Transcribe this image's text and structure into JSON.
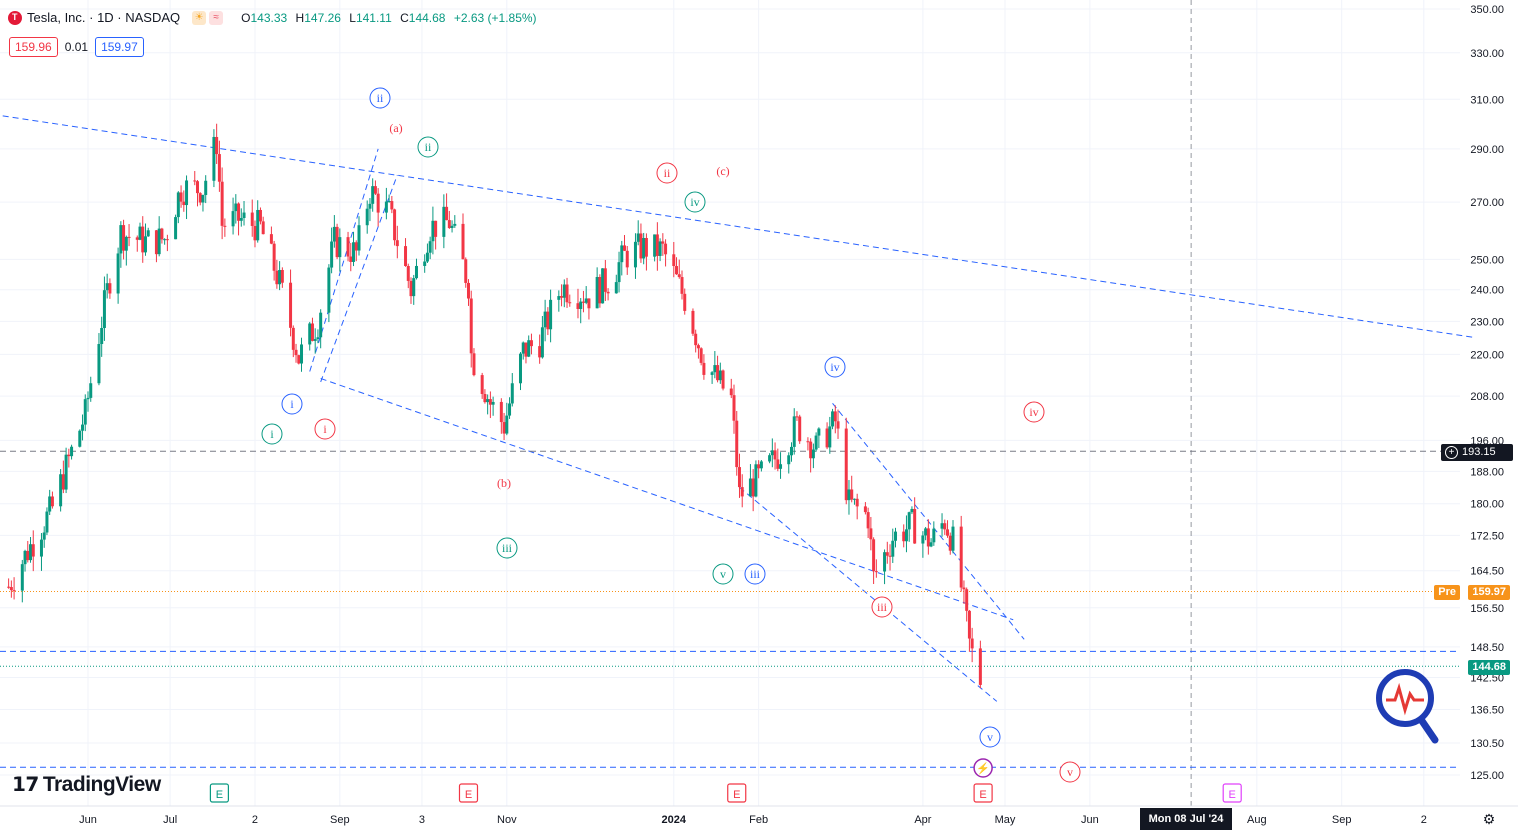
{
  "header": {
    "symbol": "Tesla, Inc. · 1D · NASDAQ",
    "open_label": "O",
    "open": "143.33",
    "high_label": "H",
    "high": "147.26",
    "low_label": "L",
    "low": "141.11",
    "close_label": "C",
    "close": "144.68",
    "change": "+2.63 (+1.85%)"
  },
  "bid_ask": {
    "bid": "159.96",
    "spread": "0.01",
    "ask": "159.97"
  },
  "price_labels": {
    "crosshair": "193.15",
    "pre_tag": "Pre",
    "pre": "159.97",
    "last": "144.68"
  },
  "crosshair_date": "Mon 08 Jul '24",
  "brand": {
    "name": "TradingView"
  },
  "colors": {
    "up": "#089981",
    "down": "#f23645",
    "blue": "#2962ff",
    "pre": "#f7931a",
    "crosshair": "#131722"
  },
  "chart_data": {
    "type": "candlestick",
    "title": "Tesla, Inc. · 1D · NASDAQ",
    "y_scale": "log",
    "y_ticks": [
      350,
      330,
      310,
      290,
      270,
      250,
      240,
      230,
      220,
      208,
      196,
      188,
      180,
      172.5,
      164.5,
      156.5,
      148.5,
      142.5,
      136.5,
      130.5,
      125
    ],
    "x_ticks": [
      {
        "label": "Jun",
        "date": "2023-06-01"
      },
      {
        "label": "Jul",
        "date": "2023-07-01"
      },
      {
        "label": "2",
        "date": "2023-08-01"
      },
      {
        "label": "Sep",
        "date": "2023-09-01"
      },
      {
        "label": "3",
        "date": "2023-10-01"
      },
      {
        "label": "Nov",
        "date": "2023-11-01"
      },
      {
        "label": "2024",
        "date": "2024-01-01"
      },
      {
        "label": "Feb",
        "date": "2024-02-01"
      },
      {
        "label": "Apr",
        "date": "2024-04-01"
      },
      {
        "label": "May",
        "date": "2024-05-01"
      },
      {
        "label": "Jun",
        "date": "2024-06-01"
      },
      {
        "label": "Aug",
        "date": "2024-08-01"
      },
      {
        "label": "Sep",
        "date": "2024-09-01"
      },
      {
        "label": "2",
        "date": "2024-10-01"
      }
    ],
    "approx_close_path": [
      [
        "2023-05-03",
        161
      ],
      [
        "2023-05-19",
        179
      ],
      [
        "2023-05-31",
        203
      ],
      [
        "2023-06-09",
        244
      ],
      [
        "2023-06-13",
        259
      ],
      [
        "2023-06-22",
        256
      ],
      [
        "2023-06-29",
        257
      ],
      [
        "2023-07-05",
        275
      ],
      [
        "2023-07-13",
        275
      ],
      [
        "2023-07-18",
        293
      ],
      [
        "2023-07-20",
        262
      ],
      [
        "2023-07-26",
        264
      ],
      [
        "2023-08-03",
        261
      ],
      [
        "2023-08-10",
        242
      ],
      [
        "2023-08-17",
        219
      ],
      [
        "2023-08-24",
        230
      ],
      [
        "2023-08-30",
        256
      ],
      [
        "2023-09-07",
        252
      ],
      [
        "2023-09-12",
        274
      ],
      [
        "2023-09-19",
        266
      ],
      [
        "2023-09-27",
        240
      ],
      [
        "2023-10-04",
        261
      ],
      [
        "2023-10-11",
        263
      ],
      [
        "2023-10-18",
        242
      ],
      [
        "2023-10-19",
        220
      ],
      [
        "2023-10-26",
        206
      ],
      [
        "2023-10-31",
        200
      ],
      [
        "2023-11-07",
        221
      ],
      [
        "2023-11-13",
        224
      ],
      [
        "2023-11-21",
        241
      ],
      [
        "2023-12-01",
        238
      ],
      [
        "2023-12-08",
        243
      ],
      [
        "2023-12-14",
        251
      ],
      [
        "2023-12-20",
        254
      ],
      [
        "2023-12-28",
        253
      ],
      [
        "2024-01-05",
        237
      ],
      [
        "2024-01-12",
        218
      ],
      [
        "2024-01-22",
        207
      ],
      [
        "2024-01-25",
        182
      ],
      [
        "2024-02-02",
        187
      ],
      [
        "2024-02-09",
        193
      ],
      [
        "2024-02-15",
        200
      ],
      [
        "2024-02-22",
        194
      ],
      [
        "2024-02-29",
        201
      ],
      [
        "2024-03-05",
        180
      ],
      [
        "2024-03-12",
        177
      ],
      [
        "2024-03-14",
        163
      ],
      [
        "2024-03-21",
        172
      ],
      [
        "2024-03-28",
        175
      ],
      [
        "2024-04-04",
        171
      ],
      [
        "2024-04-09",
        176
      ],
      [
        "2024-04-12",
        171
      ],
      [
        "2024-04-15",
        161
      ],
      [
        "2024-04-16",
        157
      ],
      [
        "2024-04-18",
        149
      ],
      [
        "2024-04-19",
        147
      ],
      [
        "2024-04-22",
        142.05
      ],
      [
        "2024-04-23",
        144.68
      ]
    ],
    "horizontal_lines": [
      {
        "price": 193.15,
        "style": "dashed",
        "color": "#787b86"
      },
      {
        "price": 159.97,
        "style": "dotted",
        "color": "#f7931a"
      },
      {
        "price": 147.6,
        "style": "dashed",
        "color": "#2962ff"
      },
      {
        "price": 144.68,
        "style": "dotted",
        "color": "#089981"
      },
      {
        "price": 126.3,
        "style": "dashed",
        "color": "#2962ff"
      }
    ],
    "wave_labels": [
      {
        "text": "ii",
        "circle": true,
        "color": "#2962ff"
      },
      {
        "text": "(a)",
        "circle": false,
        "color": "#f23645"
      },
      {
        "text": "ii",
        "circle": true,
        "color": "#089981"
      },
      {
        "text": "ii",
        "circle": true,
        "color": "#f23645"
      },
      {
        "text": "(c)",
        "circle": false,
        "color": "#f23645"
      },
      {
        "text": "iv",
        "circle": true,
        "color": "#089981"
      },
      {
        "text": "i",
        "circle": true,
        "color": "#2962ff"
      },
      {
        "text": "i",
        "circle": true,
        "color": "#089981"
      },
      {
        "text": "i",
        "circle": true,
        "color": "#f23645"
      },
      {
        "text": "(b)",
        "circle": false,
        "color": "#f23645"
      },
      {
        "text": "iii",
        "circle": true,
        "color": "#089981"
      },
      {
        "text": "iv",
        "circle": true,
        "color": "#2962ff"
      },
      {
        "text": "iv",
        "circle": true,
        "color": "#f23645"
      },
      {
        "text": "v",
        "circle": true,
        "color": "#089981"
      },
      {
        "text": "iii",
        "circle": true,
        "color": "#2962ff"
      },
      {
        "text": "iii",
        "circle": true,
        "color": "#f23645"
      },
      {
        "text": "v",
        "circle": true,
        "color": "#2962ff"
      },
      {
        "text": "v",
        "circle": true,
        "color": "#f23645"
      }
    ],
    "events": [
      {
        "text": "E",
        "color": "#089981",
        "date": "2023-07-19"
      },
      {
        "text": "E",
        "color": "#f23645",
        "date": "2023-10-18"
      },
      {
        "text": "E",
        "color": "#f23645",
        "date": "2024-01-24"
      },
      {
        "text": "E",
        "color": "#f23645",
        "date": "2024-04-23"
      },
      {
        "text": "E",
        "color": "#e040fb",
        "date": "2024-07-23"
      }
    ]
  }
}
